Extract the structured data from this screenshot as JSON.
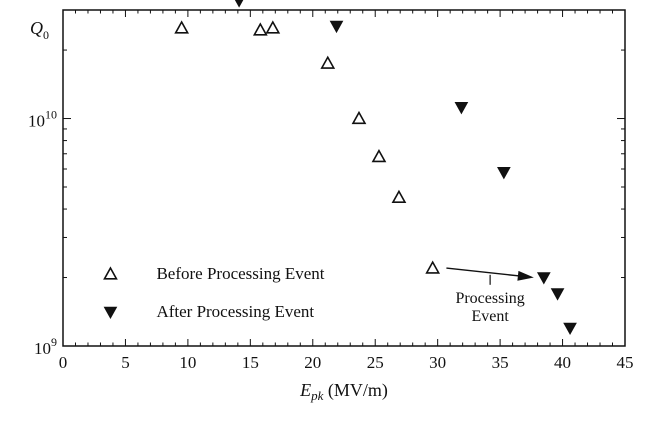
{
  "chart_data": {
    "type": "scatter",
    "title": "",
    "xlabel": "E_pk (MV/m)",
    "xlabel_main": "E",
    "xlabel_sub": "pk",
    "xlabel_unit": " (MV/m)",
    "ylabel": "Q0",
    "ylabel_main": "Q",
    "ylabel_sub": "0",
    "xlim": [
      0,
      45
    ],
    "ylim": [
      1000000000.0,
      30000000000
    ],
    "yscale": "log",
    "grid": false,
    "legend_position": "lower-left",
    "x_ticks": [
      0,
      5,
      10,
      15,
      20,
      25,
      30,
      35,
      40,
      45
    ],
    "x_tick_labels": [
      "0",
      "5",
      "10",
      "15",
      "20",
      "25",
      "30",
      "35",
      "40",
      "45"
    ],
    "y_ticks": [
      {
        "value": 1000000000.0,
        "base": "10",
        "exp": "9"
      },
      {
        "value": 10000000000,
        "base": "10",
        "exp": "10"
      }
    ],
    "series": [
      {
        "name": "Before Processing Event",
        "marker": "triangle-up-open",
        "color": "#111111",
        "x": [
          9.5,
          15.8,
          16.8,
          21.2,
          23.7,
          25.3,
          26.9,
          29.6
        ],
        "y": [
          25000000000,
          24500000000,
          25000000000,
          17500000000,
          10000000000,
          6800000000,
          4500000000,
          2200000000
        ]
      },
      {
        "name": "After Processing Event",
        "marker": "triangle-down-filled",
        "color": "#111111",
        "x": [
          14.1,
          21.9,
          31.9,
          35.3,
          38.5,
          39.6,
          40.6
        ],
        "y": [
          33000000000,
          25500000000,
          11200000000,
          5800000000,
          2000000000,
          1700000000,
          1200000000
        ]
      }
    ],
    "annotations": [
      {
        "text_lines": [
          "Processing",
          "Event"
        ],
        "arrow_from": {
          "x": 30.7,
          "y": 2200000000
        },
        "arrow_to": {
          "x": 37.7,
          "y": 2000000000
        }
      }
    ]
  }
}
